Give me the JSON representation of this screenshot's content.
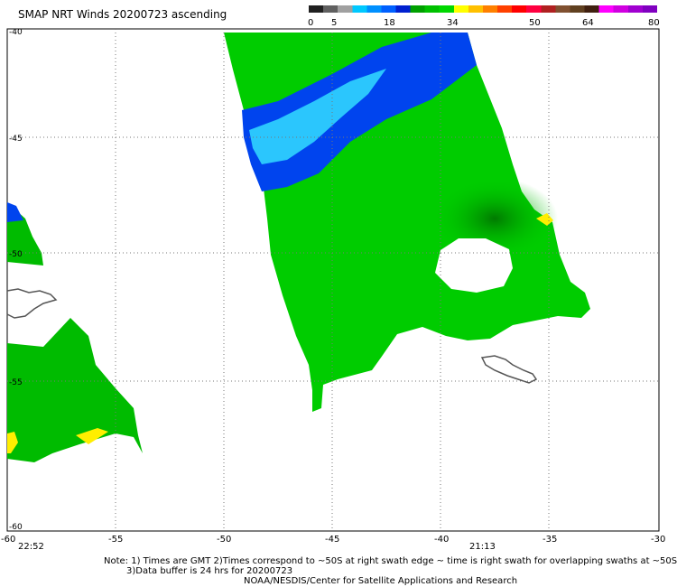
{
  "title": "SMAP NRT Winds 20200723 ascending",
  "colorbar": {
    "labels": [
      "0",
      "5",
      "18",
      "34",
      "50",
      "64",
      "80"
    ],
    "colors": [
      "#202020",
      "#606060",
      "#a0a0a0",
      "#00c8ff",
      "#0090ff",
      "#0060ff",
      "#0020d0",
      "#00a000",
      "#00c000",
      "#00d800",
      "#ffff00",
      "#ffc000",
      "#ff8000",
      "#ff4000",
      "#ff0000",
      "#ff0040",
      "#b02020",
      "#805030",
      "#604020",
      "#402010",
      "#ff00ff",
      "#d000e0",
      "#a000d0",
      "#8000c0"
    ]
  },
  "axes": {
    "x_ticks": [
      "-60",
      "-55",
      "-50",
      "-45",
      "-40",
      "-35",
      "-30"
    ],
    "y_ticks": [
      "-40",
      "-45",
      "-50",
      "-55",
      "-60"
    ]
  },
  "swath_times": {
    "left": "22:52",
    "right": "21:13"
  },
  "notes": {
    "line1": "Note: 1) Times are GMT 2)Times correspond to ~50S at right swath edge ~ time is right swath for overlapping swaths at ~50S",
    "line2": "3)Data buffer is 24 hrs for 20200723",
    "line3": "NOAA/NESDIS/Center for Satellite Applications and Research"
  },
  "colors": {
    "wind_green": "#00cc00",
    "wind_dark_green": "#009900",
    "wind_blue": "#0044ee",
    "wind_cyan": "#00ccff",
    "wind_yellow": "#ffee00",
    "land_outline": "#555555",
    "grid": "#777777"
  }
}
